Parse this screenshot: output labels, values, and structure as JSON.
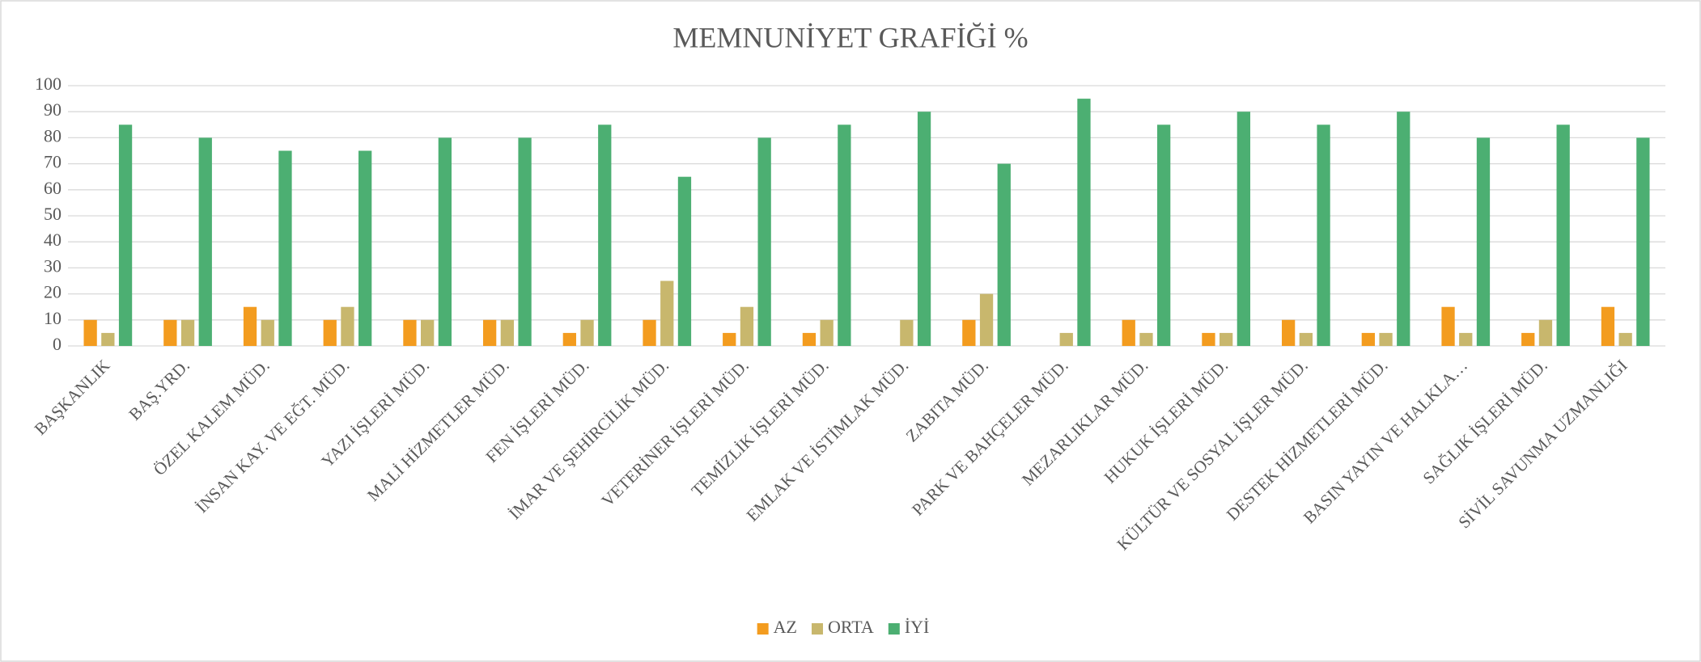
{
  "chart_data": {
    "type": "bar",
    "title": "MEMNUNİYET GRAFİĞİ %",
    "categories": [
      "BAŞKANLIK",
      "BAŞ.YRD.",
      "ÖZEL KALEM MÜD.",
      "İNSAN KAY. VE EĞT. MÜD.",
      "YAZI İŞLERİ MÜD.",
      "MALİ HİZMETLER MÜD.",
      "FEN İŞLERİ MÜD.",
      "İMAR VE ŞEHİRCİLİK MÜD.",
      "VETERİNER İŞLERİ MÜD.",
      "TEMİZLİK İŞLERİ MÜD.",
      "EMLAK VE İSTİMLAK MÜD.",
      "ZABITA MÜD.",
      "PARK VE BAHÇELER MÜD.",
      "MEZARLIKLAR MÜD.",
      "HUKUK İŞLERİ MÜD.",
      "KÜLTÜR VE SOSYAL İŞLER MÜD.",
      "DESTEK HİZMETLERİ MÜD.",
      "BASIN YAYIN VE HALKLA…",
      "SAĞLIK İŞLERİ MÜD.",
      "SİVİL SAVUNMA UZMANLIĞI"
    ],
    "series": [
      {
        "name": "AZ",
        "color": "#f39c1f",
        "values": [
          10,
          10,
          15,
          10,
          10,
          10,
          5,
          10,
          5,
          5,
          0,
          10,
          0,
          10,
          5,
          10,
          5,
          15,
          5,
          15
        ]
      },
      {
        "name": "ORTA",
        "color": "#c8b76d",
        "values": [
          5,
          10,
          10,
          15,
          10,
          10,
          10,
          25,
          15,
          10,
          10,
          20,
          5,
          5,
          5,
          5,
          5,
          5,
          10,
          5
        ]
      },
      {
        "name": "İYİ",
        "color": "#4caf72",
        "values": [
          85,
          80,
          75,
          75,
          80,
          80,
          85,
          65,
          80,
          85,
          90,
          70,
          95,
          85,
          90,
          85,
          90,
          80,
          85,
          80
        ]
      }
    ],
    "ylim": [
      0,
      100
    ],
    "yticks": [
      0,
      10,
      20,
      30,
      40,
      50,
      60,
      70,
      80,
      90,
      100
    ],
    "grid": true,
    "legend": "bottom"
  }
}
